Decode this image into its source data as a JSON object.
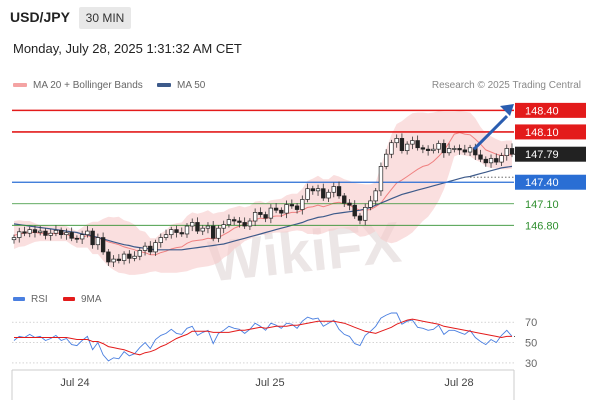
{
  "header": {
    "symbol": "USD/JPY",
    "timeframe": "30 MIN",
    "datetime": "Monday, July 28, 2025 1:31:32 AM CET"
  },
  "legend": {
    "ma20_label": "MA 20 + Bollinger Bands",
    "ma20_color": "#f08080",
    "ma50_label": "MA 50",
    "ma50_color": "#3d5a8a"
  },
  "credit": "Research © 2025 Trading Central",
  "watermark": "WikiFX",
  "chart_data": [
    {
      "type": "candlestick",
      "ylim": [
        145.9,
        148.6
      ],
      "x_tick_labels": [
        "Jul 24",
        "Jul 25",
        "Jul 28"
      ],
      "last_price": 147.79,
      "levels": [
        {
          "value": 148.4,
          "label": "148.40",
          "color": "#e31b1b",
          "style": "resistance"
        },
        {
          "value": 148.1,
          "label": "148.10",
          "color": "#e31b1b",
          "style": "resistance"
        },
        {
          "value": 147.4,
          "label": "147.40",
          "color": "#2a6ed4",
          "style": "pivot"
        },
        {
          "value": 147.1,
          "label": "147.10",
          "color": "#2f8f2f",
          "style": "support"
        },
        {
          "value": 146.8,
          "label": "146.80",
          "color": "#2f8f2f",
          "style": "support"
        }
      ],
      "last_price_label": "147.79",
      "close": [
        146.63,
        146.71,
        146.69,
        146.74,
        146.7,
        146.72,
        146.66,
        146.69,
        146.73,
        146.67,
        146.7,
        146.62,
        146.61,
        146.67,
        146.72,
        146.53,
        146.63,
        146.43,
        146.29,
        146.33,
        146.31,
        146.4,
        146.34,
        146.37,
        146.45,
        146.51,
        146.43,
        146.56,
        146.63,
        146.67,
        146.74,
        146.7,
        146.68,
        146.79,
        146.84,
        146.72,
        146.76,
        146.79,
        146.62,
        146.76,
        146.81,
        146.88,
        146.86,
        146.84,
        146.79,
        146.86,
        146.98,
        146.95,
        146.9,
        147.04,
        147.01,
        146.97,
        147.09,
        147.07,
        147.02,
        147.16,
        147.31,
        147.28,
        147.31,
        147.18,
        147.26,
        147.34,
        147.21,
        147.11,
        147.08,
        146.93,
        146.87,
        147.05,
        147.14,
        147.28,
        147.62,
        147.79,
        147.95,
        148.01,
        147.84,
        147.93,
        147.98,
        147.88,
        147.86,
        147.84,
        147.86,
        147.94,
        147.81,
        147.87,
        147.87,
        147.85,
        147.82,
        147.88,
        147.78,
        147.72,
        147.67,
        147.73,
        147.68,
        147.77,
        147.87,
        147.79
      ],
      "bollinger_upper": [
        146.86,
        146.87,
        146.86,
        146.86,
        146.83,
        146.8,
        146.8,
        146.79,
        146.79,
        146.8,
        146.79,
        146.75,
        146.72,
        146.77,
        146.82,
        146.85,
        146.85,
        146.89,
        146.92,
        146.91,
        146.92,
        146.87,
        146.85,
        146.81,
        146.73,
        146.71,
        146.62,
        146.62,
        146.69,
        146.73,
        146.81,
        146.83,
        146.84,
        146.93,
        146.98,
        146.96,
        146.98,
        147.01,
        146.96,
        146.98,
        146.99,
        147.03,
        147.05,
        147.07,
        147.05,
        147.07,
        147.13,
        147.14,
        147.11,
        147.15,
        147.16,
        147.17,
        147.22,
        147.24,
        147.24,
        147.31,
        147.42,
        147.45,
        147.49,
        147.44,
        147.44,
        147.5,
        147.48,
        147.44,
        147.42,
        147.39,
        147.38,
        147.37,
        147.37,
        147.4,
        147.62,
        147.86,
        148.06,
        148.21,
        148.25,
        148.31,
        148.36,
        148.37,
        148.37,
        148.36,
        148.37,
        148.39,
        148.38,
        148.38,
        148.38,
        148.39,
        148.38,
        148.37,
        148.29,
        148.17,
        148.08,
        148.04,
        148.0,
        147.97,
        147.98,
        147.98
      ],
      "bollinger_lower": [
        146.47,
        146.5,
        146.51,
        146.54,
        146.57,
        146.58,
        146.58,
        146.58,
        146.58,
        146.58,
        146.58,
        146.53,
        146.49,
        146.49,
        146.49,
        146.4,
        146.4,
        146.31,
        146.23,
        146.18,
        146.14,
        146.13,
        146.11,
        146.11,
        146.12,
        146.13,
        146.15,
        146.16,
        146.14,
        146.14,
        146.14,
        146.14,
        146.15,
        146.16,
        146.19,
        146.21,
        146.22,
        146.23,
        146.25,
        146.28,
        146.35,
        146.39,
        146.47,
        146.52,
        146.58,
        146.61,
        146.64,
        146.67,
        146.67,
        146.69,
        146.7,
        146.7,
        146.7,
        146.72,
        146.73,
        146.72,
        146.68,
        146.68,
        146.67,
        146.69,
        146.72,
        146.73,
        146.76,
        146.76,
        146.74,
        146.69,
        146.64,
        146.65,
        146.68,
        146.72,
        146.61,
        146.57,
        146.55,
        146.57,
        146.61,
        146.65,
        146.7,
        146.78,
        146.86,
        146.92,
        147.02,
        147.14,
        147.3,
        147.52,
        147.76,
        147.79,
        147.77,
        147.76,
        147.71,
        147.68,
        147.62,
        147.6,
        147.59,
        147.58,
        147.58,
        147.59
      ],
      "ma20": [
        146.66,
        146.68,
        146.69,
        146.7,
        146.7,
        146.69,
        146.69,
        146.68,
        146.69,
        146.69,
        146.68,
        146.64,
        146.61,
        146.63,
        146.66,
        146.63,
        146.62,
        146.6,
        146.57,
        146.55,
        146.53,
        146.5,
        146.48,
        146.46,
        146.43,
        146.42,
        146.39,
        146.39,
        146.42,
        146.44,
        146.47,
        146.49,
        146.5,
        146.55,
        146.58,
        146.59,
        146.6,
        146.62,
        146.61,
        146.63,
        146.67,
        146.71,
        146.76,
        146.79,
        146.82,
        146.84,
        146.88,
        146.9,
        146.89,
        146.92,
        146.93,
        146.93,
        146.96,
        146.98,
        146.98,
        147.01,
        147.05,
        147.06,
        147.08,
        147.06,
        147.08,
        147.11,
        147.12,
        147.1,
        147.08,
        147.04,
        147.01,
        147.01,
        147.02,
        147.06,
        147.11,
        147.21,
        147.3,
        147.39,
        147.43,
        147.48,
        147.53,
        147.58,
        147.62,
        147.64,
        147.69,
        147.76,
        147.84,
        147.95,
        148.07,
        148.09,
        148.07,
        148.06,
        148.0,
        147.93,
        147.85,
        147.82,
        147.79,
        147.77,
        147.78,
        147.78
      ],
      "ma50": [
        146.82,
        146.81,
        146.8,
        146.79,
        146.78,
        146.77,
        146.76,
        146.75,
        146.74,
        146.73,
        146.72,
        146.71,
        146.7,
        146.68,
        146.67,
        146.65,
        146.63,
        146.61,
        146.59,
        146.57,
        146.55,
        146.53,
        146.52,
        146.5,
        146.49,
        146.48,
        146.47,
        146.46,
        146.46,
        146.46,
        146.46,
        146.46,
        146.46,
        146.47,
        146.48,
        146.49,
        146.5,
        146.51,
        146.52,
        146.53,
        146.54,
        146.56,
        146.58,
        146.6,
        146.62,
        146.64,
        146.66,
        146.68,
        146.7,
        146.72,
        146.74,
        146.76,
        146.78,
        146.8,
        146.82,
        146.84,
        146.87,
        146.89,
        146.91,
        146.92,
        146.94,
        146.96,
        146.97,
        146.98,
        146.99,
        147.0,
        147.01,
        147.03,
        147.05,
        147.08,
        147.11,
        147.14,
        147.17,
        147.2,
        147.23,
        147.25,
        147.27,
        147.29,
        147.31,
        147.33,
        147.35,
        147.37,
        147.39,
        147.41,
        147.43,
        147.45,
        147.47,
        147.48,
        147.5,
        147.52,
        147.54,
        147.56,
        147.58,
        147.6,
        147.61,
        147.62
      ]
    },
    {
      "type": "line",
      "series": [
        {
          "name": "RSI",
          "color": "#4a7fe0",
          "values": [
            52,
            56,
            55,
            58,
            55,
            56,
            52,
            54,
            57,
            52,
            54,
            48,
            47,
            52,
            56,
            43,
            50,
            38,
            32,
            35,
            34,
            41,
            37,
            39,
            45,
            50,
            44,
            53,
            57,
            59,
            63,
            59,
            58,
            64,
            66,
            57,
            60,
            62,
            49,
            59,
            62,
            66,
            64,
            63,
            59,
            63,
            69,
            66,
            62,
            69,
            67,
            64,
            69,
            68,
            64,
            71,
            75,
            73,
            74,
            66,
            69,
            72,
            63,
            58,
            56,
            49,
            47,
            57,
            61,
            66,
            74,
            77,
            79,
            79,
            68,
            71,
            72,
            65,
            64,
            62,
            63,
            67,
            58,
            62,
            62,
            60,
            58,
            62,
            55,
            51,
            48,
            53,
            50,
            57,
            62,
            56
          ]
        },
        {
          "name": "9MA",
          "color": "#e31b1b",
          "values": [
            55,
            55,
            55,
            55,
            55,
            55,
            55,
            55,
            55,
            55,
            55,
            54,
            53,
            53,
            53,
            51,
            51,
            49,
            46,
            45,
            44,
            43,
            41,
            39,
            38,
            40,
            41,
            43,
            46,
            48,
            51,
            54,
            56,
            58,
            61,
            61,
            61,
            61,
            60,
            60,
            60,
            60,
            61,
            62,
            62,
            63,
            64,
            65,
            64,
            65,
            66,
            66,
            66,
            67,
            67,
            68,
            69,
            70,
            71,
            71,
            71,
            71,
            70,
            69,
            67,
            65,
            63,
            61,
            60,
            59,
            61,
            63,
            65,
            68,
            70,
            72,
            73,
            72,
            71,
            70,
            69,
            68,
            66,
            65,
            64,
            63,
            62,
            61,
            60,
            59,
            58,
            57,
            56,
            55,
            56,
            56
          ]
        }
      ],
      "ylim": [
        25,
        80
      ],
      "y_ticks": [
        70,
        50,
        30
      ],
      "y_tick_labels": [
        "70",
        "50",
        "30"
      ],
      "x_tick_labels": [
        "Jul 24",
        "Jul 25",
        "Jul 28"
      ]
    }
  ]
}
